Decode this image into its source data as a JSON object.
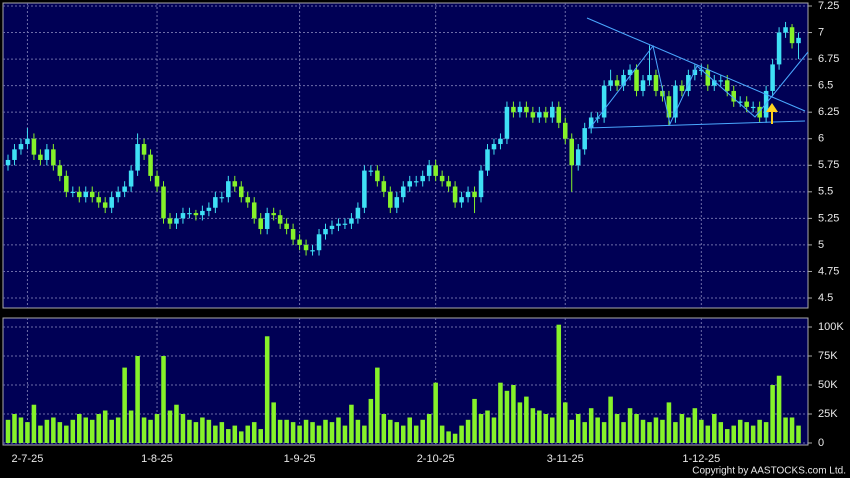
{
  "chart_data": {
    "type": "candlestick",
    "copyright": "Copyright by AASTOCKS.com Ltd.",
    "categories": [
      null,
      null,
      null,
      "2-7-25",
      null,
      null,
      null,
      null,
      null,
      null,
      null,
      null,
      null,
      null,
      null,
      null,
      null,
      null,
      null,
      null,
      null,
      null,
      null,
      "1-8-25",
      null,
      null,
      null,
      null,
      null,
      null,
      null,
      null,
      null,
      null,
      null,
      null,
      null,
      null,
      null,
      null,
      null,
      null,
      null,
      null,
      null,
      "1-9-25",
      null,
      null,
      null,
      null,
      null,
      null,
      null,
      null,
      null,
      null,
      null,
      null,
      null,
      null,
      null,
      null,
      null,
      null,
      null,
      null,
      "2-10-25",
      null,
      null,
      null,
      null,
      null,
      null,
      null,
      null,
      null,
      null,
      null,
      null,
      null,
      null,
      null,
      null,
      null,
      null,
      null,
      "3-11-25",
      null,
      null,
      null,
      null,
      null,
      null,
      null,
      null,
      null,
      null,
      null,
      null,
      null,
      null,
      null,
      null,
      null,
      null,
      null,
      null,
      "1-12-25",
      null,
      null,
      null,
      null,
      null,
      null,
      null,
      null,
      null,
      null,
      null,
      null,
      null,
      null,
      null
    ],
    "open": [
      5.75,
      5.8,
      5.9,
      5.95,
      6.0,
      5.85,
      5.8,
      5.9,
      5.75,
      5.65,
      5.5,
      5.5,
      5.45,
      5.5,
      5.45,
      5.4,
      5.35,
      5.45,
      5.5,
      5.55,
      5.7,
      5.95,
      5.85,
      5.65,
      5.55,
      5.25,
      5.2,
      5.25,
      5.3,
      5.3,
      5.28,
      5.32,
      5.35,
      5.45,
      5.45,
      5.6,
      5.55,
      5.45,
      5.4,
      5.25,
      5.15,
      5.3,
      5.28,
      5.2,
      5.15,
      5.05,
      5.0,
      4.95,
      4.95,
      5.1,
      5.15,
      5.18,
      5.2,
      5.2,
      5.25,
      5.35,
      5.7,
      5.7,
      5.6,
      5.5,
      5.35,
      5.45,
      5.55,
      5.6,
      5.6,
      5.65,
      5.75,
      5.65,
      5.6,
      5.55,
      5.4,
      5.45,
      5.5,
      5.45,
      5.7,
      5.9,
      5.95,
      6.0,
      6.3,
      6.25,
      6.3,
      6.25,
      6.2,
      6.25,
      6.2,
      6.3,
      6.15,
      6.0,
      5.75,
      5.9,
      6.1,
      6.2,
      6.2,
      6.5,
      6.55,
      6.5,
      6.6,
      6.65,
      6.45,
      6.55,
      6.6,
      6.45,
      6.4,
      6.2,
      6.5,
      6.45,
      6.6,
      6.65,
      6.65,
      6.5,
      6.55,
      6.55,
      6.45,
      6.35,
      6.35,
      6.3,
      6.3,
      6.2,
      6.45,
      6.7,
      7.0,
      7.05,
      6.9
    ],
    "high": [
      5.85,
      5.95,
      6.0,
      6.1,
      6.05,
      5.9,
      5.95,
      5.95,
      5.8,
      5.7,
      5.55,
      5.55,
      5.55,
      5.55,
      5.5,
      5.45,
      5.5,
      5.55,
      5.6,
      5.75,
      6.05,
      6.0,
      5.9,
      5.7,
      5.6,
      5.3,
      5.3,
      5.35,
      5.35,
      5.33,
      5.37,
      5.4,
      5.5,
      5.5,
      5.65,
      5.65,
      5.6,
      5.5,
      5.45,
      5.3,
      5.35,
      5.35,
      5.33,
      5.25,
      5.2,
      5.1,
      5.05,
      5.0,
      5.15,
      5.2,
      5.23,
      5.25,
      5.25,
      5.3,
      5.4,
      5.75,
      5.75,
      5.75,
      5.65,
      5.55,
      5.5,
      5.6,
      5.65,
      5.65,
      5.7,
      5.8,
      5.8,
      5.7,
      5.65,
      5.6,
      5.5,
      5.55,
      5.55,
      5.75,
      5.95,
      6.0,
      6.05,
      6.35,
      6.35,
      6.35,
      6.35,
      6.3,
      6.3,
      6.3,
      6.35,
      6.35,
      6.2,
      6.05,
      5.95,
      6.15,
      6.25,
      6.25,
      6.55,
      6.65,
      6.6,
      6.65,
      6.7,
      6.7,
      6.6,
      6.88,
      6.65,
      6.5,
      6.45,
      6.55,
      6.55,
      6.65,
      6.7,
      6.7,
      6.7,
      6.6,
      6.6,
      6.6,
      6.5,
      6.4,
      6.4,
      6.35,
      6.35,
      6.5,
      6.75,
      7.05,
      7.1,
      7.08,
      7.0
    ],
    "low": [
      5.7,
      5.75,
      5.85,
      5.9,
      5.8,
      5.75,
      5.75,
      5.7,
      5.6,
      5.45,
      5.45,
      5.4,
      5.4,
      5.4,
      5.35,
      5.3,
      5.3,
      5.4,
      5.45,
      5.5,
      5.65,
      5.8,
      5.6,
      5.5,
      5.2,
      5.15,
      5.15,
      5.2,
      5.25,
      5.23,
      5.23,
      5.27,
      5.3,
      5.4,
      5.4,
      5.5,
      5.4,
      5.35,
      5.2,
      5.1,
      5.1,
      5.23,
      5.15,
      5.1,
      5.0,
      4.95,
      4.9,
      4.9,
      4.9,
      5.05,
      5.1,
      5.13,
      5.15,
      5.15,
      5.2,
      5.3,
      5.65,
      5.55,
      5.45,
      5.3,
      5.3,
      5.4,
      5.5,
      5.55,
      5.55,
      5.6,
      5.6,
      5.55,
      5.5,
      5.35,
      5.35,
      5.4,
      5.3,
      5.4,
      5.65,
      5.85,
      5.9,
      5.95,
      6.2,
      6.2,
      6.2,
      6.15,
      6.15,
      6.15,
      6.15,
      6.1,
      5.95,
      5.5,
      5.7,
      5.85,
      6.05,
      6.15,
      6.15,
      6.45,
      6.45,
      6.45,
      6.55,
      6.4,
      6.4,
      6.5,
      6.4,
      6.35,
      6.12,
      6.15,
      6.4,
      6.4,
      6.55,
      6.6,
      6.45,
      6.45,
      6.5,
      6.4,
      6.3,
      6.3,
      6.25,
      6.25,
      6.15,
      6.15,
      6.4,
      6.65,
      6.95,
      6.85,
      6.75
    ],
    "close": [
      5.8,
      5.9,
      5.95,
      6.0,
      5.85,
      5.8,
      5.9,
      5.75,
      5.65,
      5.5,
      5.5,
      5.45,
      5.5,
      5.45,
      5.4,
      5.35,
      5.45,
      5.5,
      5.55,
      5.7,
      5.95,
      5.85,
      5.65,
      5.55,
      5.25,
      5.2,
      5.25,
      5.3,
      5.3,
      5.28,
      5.32,
      5.35,
      5.45,
      5.45,
      5.6,
      5.55,
      5.45,
      5.4,
      5.25,
      5.15,
      5.3,
      5.28,
      5.2,
      5.15,
      5.05,
      5.0,
      4.95,
      4.95,
      5.1,
      5.15,
      5.18,
      5.2,
      5.2,
      5.25,
      5.35,
      5.7,
      5.7,
      5.6,
      5.5,
      5.35,
      5.45,
      5.55,
      5.6,
      5.6,
      5.65,
      5.75,
      5.65,
      5.6,
      5.55,
      5.4,
      5.45,
      5.5,
      5.45,
      5.7,
      5.9,
      5.95,
      6.0,
      6.3,
      6.25,
      6.3,
      6.25,
      6.2,
      6.25,
      6.2,
      6.3,
      6.15,
      6.0,
      5.75,
      5.9,
      6.1,
      6.2,
      6.2,
      6.5,
      6.55,
      6.5,
      6.6,
      6.65,
      6.45,
      6.55,
      6.6,
      6.45,
      6.4,
      6.2,
      6.5,
      6.45,
      6.6,
      6.65,
      6.65,
      6.5,
      6.55,
      6.55,
      6.45,
      6.35,
      6.35,
      6.3,
      6.3,
      6.2,
      6.45,
      6.7,
      7.0,
      7.05,
      6.9,
      6.95
    ],
    "volume": [
      20000,
      25000,
      22000,
      18000,
      33000,
      15000,
      20000,
      22000,
      18000,
      15000,
      20000,
      25000,
      22000,
      20000,
      25000,
      28000,
      20000,
      22000,
      65000,
      28000,
      75000,
      22000,
      20000,
      25000,
      75000,
      28000,
      33000,
      25000,
      20000,
      18000,
      22000,
      20000,
      15000,
      18000,
      12000,
      15000,
      10000,
      15000,
      18000,
      12000,
      92000,
      35000,
      20000,
      20000,
      18000,
      15000,
      20000,
      18000,
      15000,
      20000,
      18000,
      22000,
      15000,
      33000,
      20000,
      15000,
      38000,
      65000,
      25000,
      20000,
      18000,
      15000,
      22000,
      15000,
      20000,
      25000,
      52000,
      15000,
      10000,
      8000,
      15000,
      20000,
      38000,
      25000,
      28000,
      22000,
      52000,
      45000,
      50000,
      35000,
      40000,
      30000,
      28000,
      25000,
      22000,
      102000,
      35000,
      20000,
      25000,
      18000,
      30000,
      22000,
      18000,
      40000,
      25000,
      18000,
      30000,
      25000,
      20000,
      18000,
      22000,
      20000,
      35000,
      18000,
      25000,
      22000,
      30000,
      20000,
      15000,
      25000,
      18000,
      12000,
      15000,
      20000,
      18000,
      15000,
      20000,
      18000,
      50000,
      58000,
      22000,
      22000,
      15000
    ],
    "up_color": "#3fe0f5",
    "down_color": "#86f22a",
    "volume_color": "#86f22a",
    "ylim": [
      4.5,
      7.25
    ],
    "yticks": [
      4.5,
      4.75,
      5,
      5.25,
      5.5,
      5.75,
      6,
      6.25,
      6.5,
      6.75,
      7,
      7.25
    ],
    "y2lim": [
      0,
      100000
    ],
    "y2ticks": [
      0,
      {
        "value": 25000,
        "label": "25K"
      },
      {
        "value": 50000,
        "label": "50K"
      },
      {
        "value": 75000,
        "label": "75K"
      },
      {
        "value": 100000,
        "label": "100K"
      }
    ],
    "grid": true
  }
}
